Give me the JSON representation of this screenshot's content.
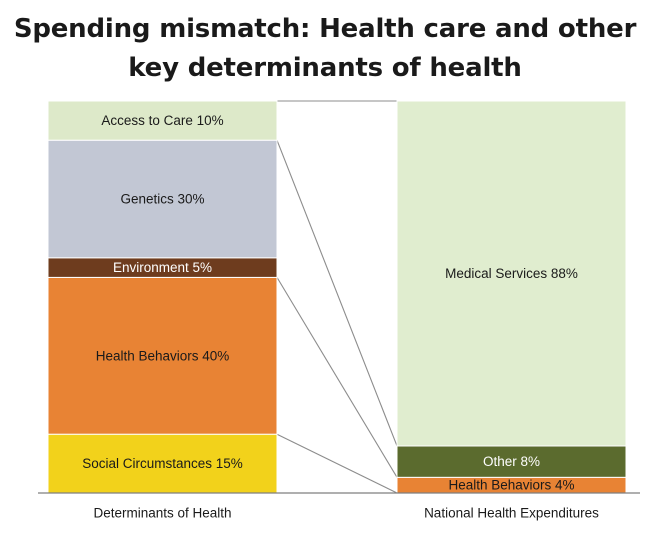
{
  "chart_data": {
    "type": "bar",
    "stacked": true,
    "title_lines": [
      "Spending mismatch: Health care and other",
      "key determinants of health"
    ],
    "ylim": [
      0,
      100
    ],
    "unit": "%",
    "bars": [
      {
        "category": "Determinants of Health",
        "segments": [
          {
            "label": "Social Circumstances 15%",
            "value": 15,
            "color": "#f2d21b",
            "text_color": "#1a1a1a"
          },
          {
            "label": "Health Behaviors 40%",
            "value": 40,
            "color": "#e88334",
            "text_color": "#1a1a1a"
          },
          {
            "label": "Environment  5%",
            "value": 5,
            "color": "#6e3c1e",
            "text_color": "#ffffff"
          },
          {
            "label": "Genetics 30%",
            "value": 30,
            "color": "#c2c7d4",
            "text_color": "#1a1a1a"
          },
          {
            "label": "Access to Care 10%",
            "value": 10,
            "color": "#dde9c9",
            "text_color": "#1a1a1a"
          }
        ]
      },
      {
        "category": "National Health Expenditures",
        "segments": [
          {
            "label": "Health Behaviors  4%",
            "value": 4,
            "color": "#e88334",
            "text_color": "#1a1a1a"
          },
          {
            "label": "Other 8%",
            "value": 8,
            "color": "#5b6b2e",
            "text_color": "#ffffff"
          },
          {
            "label": "Medical Services 88%",
            "value": 88,
            "color": "#e0edcf",
            "text_color": "#1a1a1a"
          }
        ]
      }
    ],
    "connectors": [
      {
        "from_bar": 0,
        "from_segment": 4,
        "to_bar": 1,
        "to_segment": 2
      },
      {
        "from_bar": 0,
        "from_segment": 1,
        "to_bar": 1,
        "to_segment": 0
      }
    ]
  }
}
